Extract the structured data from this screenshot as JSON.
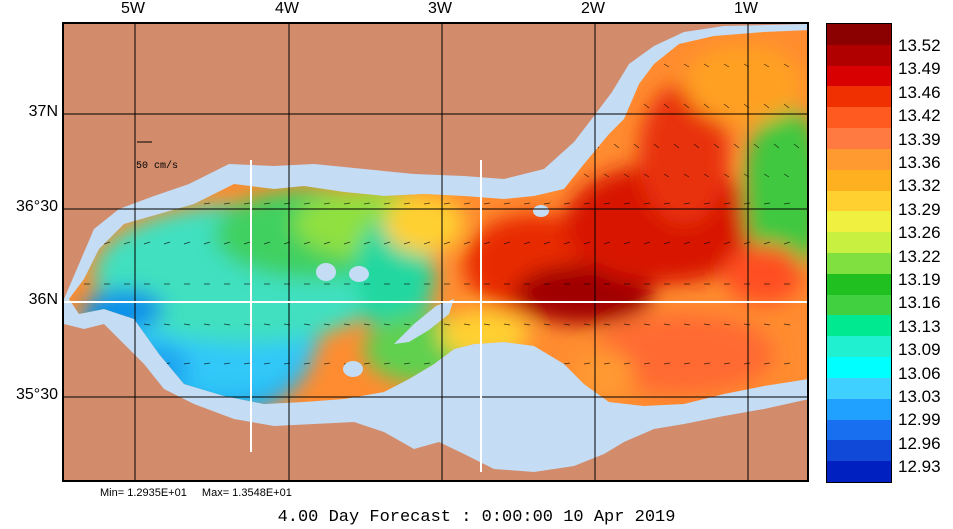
{
  "lon_labels": [
    "5W",
    "4W",
    "3W",
    "2W",
    "1W"
  ],
  "lat_labels": [
    "37N",
    "36°30",
    "36N",
    "35°30"
  ],
  "scale_label": "50 cm/s",
  "colorbar": {
    "labels": [
      "13.52",
      "13.49",
      "13.46",
      "13.42",
      "13.39",
      "13.36",
      "13.32",
      "13.29",
      "13.26",
      "13.22",
      "13.19",
      "13.16",
      "13.13",
      "13.09",
      "13.06",
      "13.03",
      "12.99",
      "12.96",
      "12.93"
    ],
    "colors": [
      "#8b0000",
      "#b00000",
      "#d80000",
      "#f03000",
      "#ff5a20",
      "#ff7a40",
      "#ff9a30",
      "#ffb020",
      "#ffd030",
      "#f0f040",
      "#c8f040",
      "#80e040",
      "#20c020",
      "#40d040",
      "#00e890",
      "#20f0d0",
      "#00ffff",
      "#40d0ff",
      "#20a0ff",
      "#1870f0",
      "#1048d8",
      "#0020c0"
    ]
  },
  "min_label": "Min= 1.2935E+01",
  "max_label": "Max= 1.3548E+01",
  "forecast": "4.00 Day Forecast :  0:00:00  10 Apr 2019"
}
